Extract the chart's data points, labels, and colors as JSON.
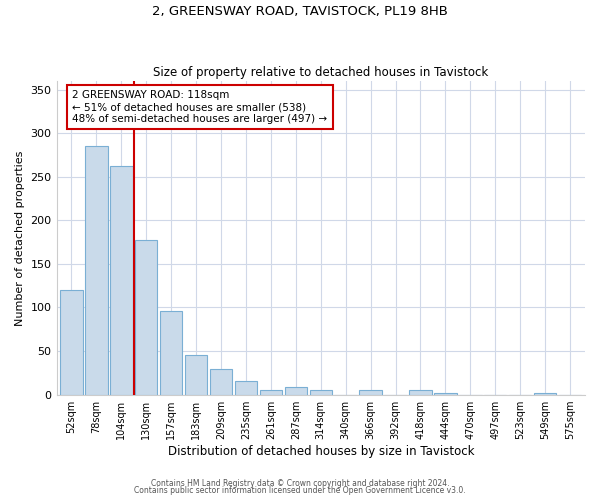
{
  "title1": "2, GREENSWAY ROAD, TAVISTOCK, PL19 8HB",
  "title2": "Size of property relative to detached houses in Tavistock",
  "xlabel": "Distribution of detached houses by size in Tavistock",
  "ylabel": "Number of detached properties",
  "bar_labels": [
    "52sqm",
    "78sqm",
    "104sqm",
    "130sqm",
    "157sqm",
    "183sqm",
    "209sqm",
    "235sqm",
    "261sqm",
    "287sqm",
    "314sqm",
    "340sqm",
    "366sqm",
    "392sqm",
    "418sqm",
    "444sqm",
    "470sqm",
    "497sqm",
    "523sqm",
    "549sqm",
    "575sqm"
  ],
  "bar_values": [
    120,
    285,
    262,
    178,
    96,
    45,
    29,
    16,
    5,
    9,
    5,
    0,
    5,
    0,
    5,
    2,
    0,
    0,
    0,
    2,
    0
  ],
  "bar_color": "#c9daea",
  "bar_edge_color": "#7aafd4",
  "vline_color": "#cc0000",
  "annotation_text": "2 GREENSWAY ROAD: 118sqm\n← 51% of detached houses are smaller (538)\n48% of semi-detached houses are larger (497) →",
  "annotation_box_color": "#ffffff",
  "annotation_box_edge": "#cc0000",
  "ylim": [
    0,
    360
  ],
  "yticks": [
    0,
    50,
    100,
    150,
    200,
    250,
    300,
    350
  ],
  "footer1": "Contains HM Land Registry data © Crown copyright and database right 2024.",
  "footer2": "Contains public sector information licensed under the Open Government Licence v3.0.",
  "bg_color": "#ffffff",
  "plot_bg_color": "#ffffff",
  "grid_color": "#d0d8e8"
}
